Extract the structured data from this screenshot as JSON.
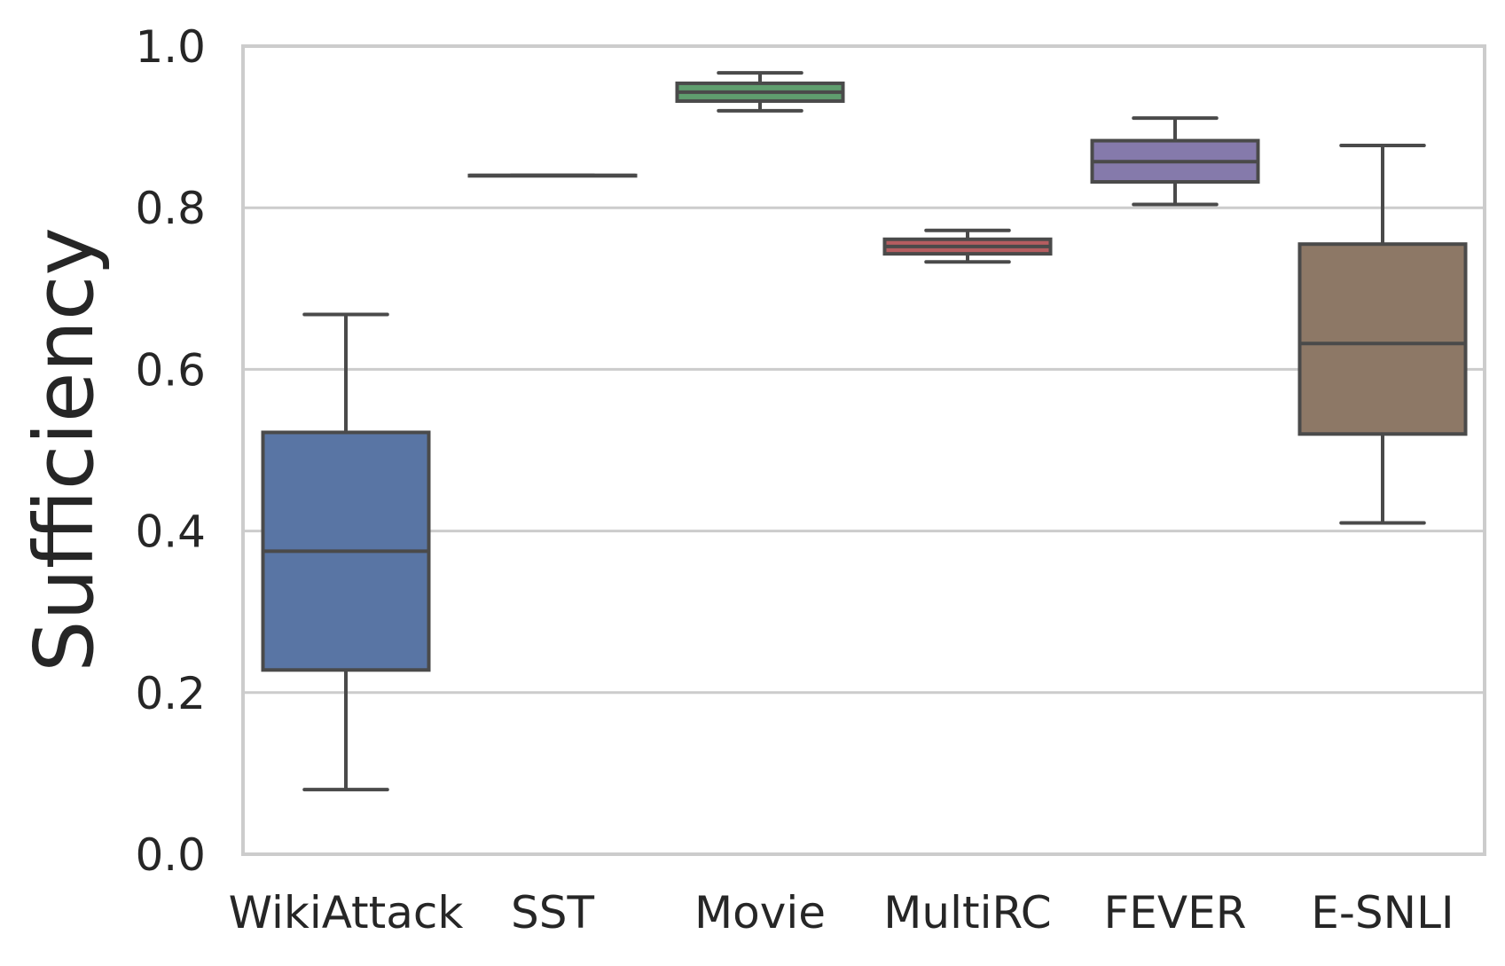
{
  "chart_data": {
    "type": "box",
    "title": "",
    "xlabel": "",
    "ylabel": "Sufficiency",
    "ylim": [
      0.0,
      1.0
    ],
    "yticks": [
      "0.0",
      "0.2",
      "0.4",
      "0.6",
      "0.8",
      "1.0"
    ],
    "grid": "horizontal",
    "categories": [
      "WikiAttack",
      "SST",
      "Movie",
      "MultiRC",
      "FEVER",
      "E-SNLI"
    ],
    "series": [
      {
        "whisker_low": 0.08,
        "q1": 0.228,
        "median": 0.375,
        "q3": 0.522,
        "whisker_high": 0.668,
        "color": "#5975a4"
      },
      {
        "whisker_low": 0.84,
        "q1": 0.84,
        "median": 0.84,
        "q3": 0.84,
        "whisker_high": 0.84,
        "color": "#cc8963"
      },
      {
        "whisker_low": 0.92,
        "q1": 0.932,
        "median": 0.943,
        "q3": 0.954,
        "whisker_high": 0.967,
        "color": "#5f9e6e"
      },
      {
        "whisker_low": 0.733,
        "q1": 0.743,
        "median": 0.752,
        "q3": 0.761,
        "whisker_high": 0.772,
        "color": "#b55d60"
      },
      {
        "whisker_low": 0.804,
        "q1": 0.832,
        "median": 0.857,
        "q3": 0.883,
        "whisker_high": 0.911,
        "color": "#857aab"
      },
      {
        "whisker_low": 0.41,
        "q1": 0.52,
        "median": 0.632,
        "q3": 0.755,
        "whisker_high": 0.877,
        "color": "#8d7866"
      }
    ],
    "styles": {
      "line_color": "#4a4a4a",
      "grid_color": "#cccccc",
      "frame_color": "#cccccc",
      "text_color": "#262626"
    }
  }
}
